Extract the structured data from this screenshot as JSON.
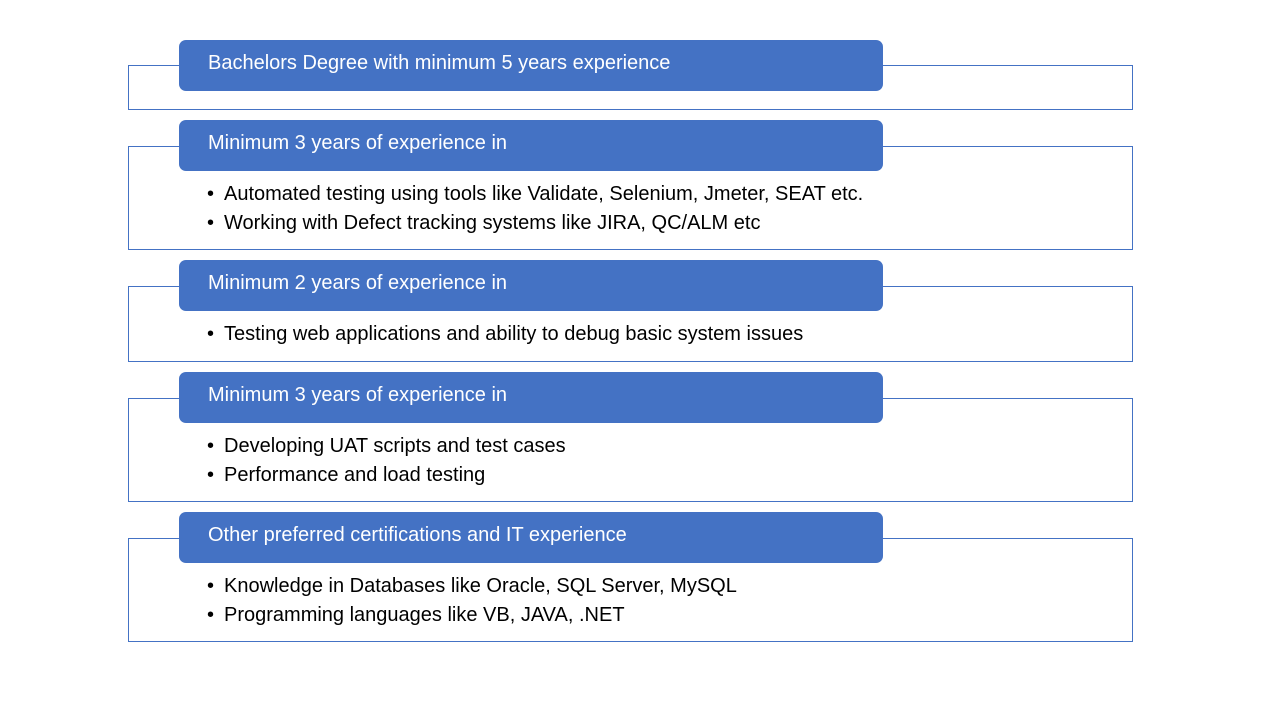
{
  "colors": {
    "header_fill": "#4472c4",
    "box_border": "#4472c4",
    "header_text": "#ffffff",
    "bullet_text": "#000000"
  },
  "sections": [
    {
      "header": "Bachelors Degree with minimum 5 years experience",
      "bullets": []
    },
    {
      "header": "Minimum 3 years of experience in",
      "bullets": [
        "Automated testing using tools like Validate, Selenium, Jmeter, SEAT etc.",
        "Working with Defect tracking systems like JIRA, QC/ALM etc"
      ]
    },
    {
      "header": "Minimum 2 years of experience in",
      "bullets": [
        "Testing web applications and ability to debug basic system issues"
      ]
    },
    {
      "header": "Minimum 3 years of experience in",
      "bullets": [
        "Developing UAT scripts and test cases",
        "Performance and load testing"
      ]
    },
    {
      "header": "Other preferred certifications and IT experience",
      "bullets": [
        "Knowledge in Databases like Oracle, SQL Server, MySQL",
        "Programming languages like VB, JAVA, .NET"
      ]
    }
  ]
}
